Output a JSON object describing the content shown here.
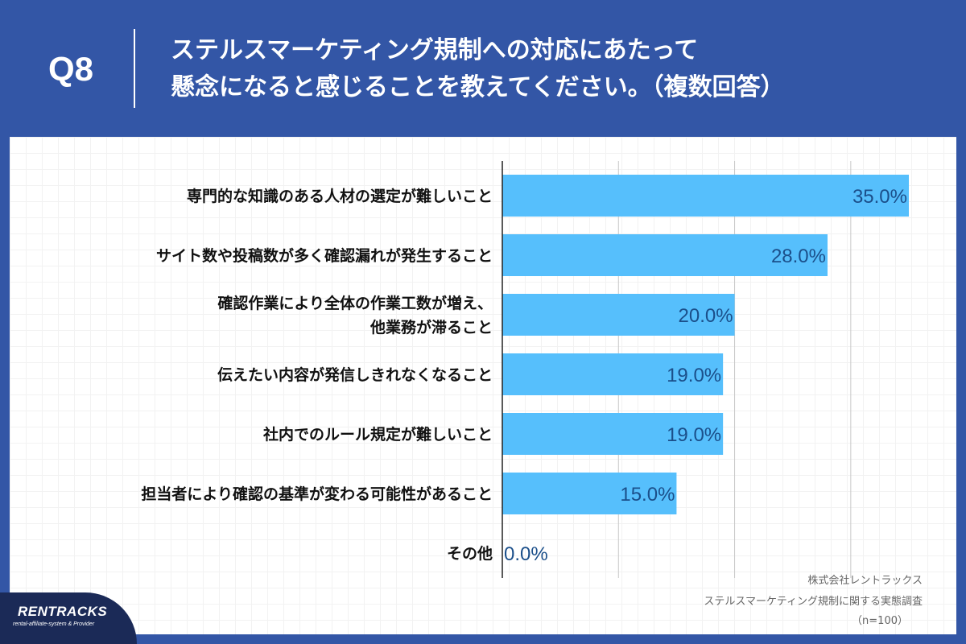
{
  "header": {
    "question": "Q8",
    "title_line1": "ステルスマーケティング規制への対応にあたって",
    "title_line2": "懸念になると感じることを教えてください。（複数回答）"
  },
  "chart_data": {
    "type": "bar",
    "orientation": "horizontal",
    "categories": [
      [
        "専門的な知識のある人材の選定が難しいこと"
      ],
      [
        "サイト数や投稿数が多く確認漏れが発生すること"
      ],
      [
        "確認作業により全体の作業工数が増え、",
        "他業務が滞ること"
      ],
      [
        "伝えたい内容が発信しきれなくなること"
      ],
      [
        "社内でのルール規定が難しいこと"
      ],
      [
        "担当者により確認の基準が変わる可能性があること"
      ],
      [
        "その他"
      ]
    ],
    "values": [
      35.0,
      28.0,
      20.0,
      19.0,
      19.0,
      15.0,
      0.0
    ],
    "value_labels": [
      "35.0%",
      "28.0%",
      "20.0%",
      "19.0%",
      "19.0%",
      "15.0%",
      "0.0%"
    ],
    "xlim": [
      0,
      35
    ],
    "gridlines_at": [
      10,
      20,
      30
    ],
    "bar_color": "#56bffc",
    "label_color": "#1b4f8a"
  },
  "source": {
    "company": "株式会社レントラックス",
    "survey": "ステルスマーケティング規制に関する実態調査",
    "n": "（n=100）"
  },
  "logo": {
    "name": "RENTRACKS",
    "tagline": "rental-affiliate-system & Provider"
  }
}
